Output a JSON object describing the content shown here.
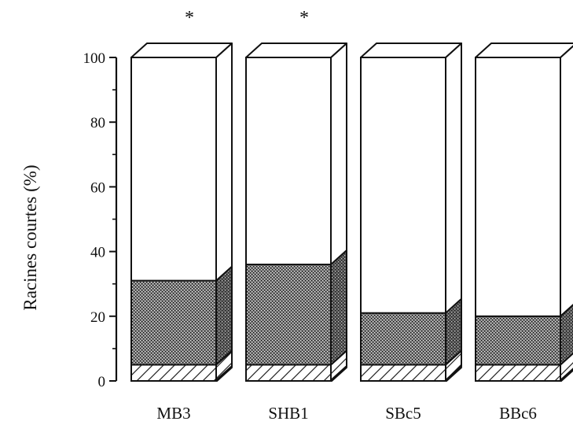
{
  "chart_data": {
    "type": "bar",
    "stacked": true,
    "style": "3d",
    "title": "",
    "xlabel": "",
    "ylabel": "Racines courtes (%)",
    "ylim": [
      0,
      100
    ],
    "yticks": [
      0,
      20,
      40,
      60,
      80,
      100
    ],
    "categories": [
      "MB3",
      "SHB1",
      "SBc5",
      "BBc6"
    ],
    "series": [
      {
        "fill": "hatched",
        "values": [
          5,
          5,
          5,
          5
        ]
      },
      {
        "fill": "stippled",
        "values": [
          26,
          31,
          16,
          15
        ]
      },
      {
        "fill": "white",
        "values": [
          69,
          64,
          79,
          80
        ]
      }
    ],
    "annotations": [
      {
        "category": "MB3",
        "text": "*"
      },
      {
        "category": "SHB1",
        "text": "*"
      }
    ],
    "grid": false,
    "legend": "none"
  }
}
